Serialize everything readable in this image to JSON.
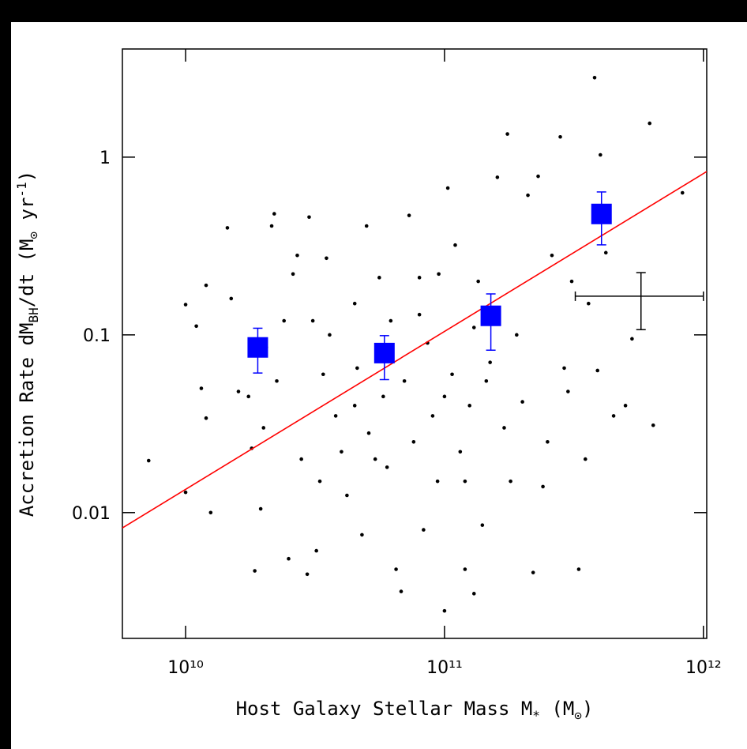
{
  "chart_data": {
    "type": "scatter",
    "xlabel": [
      "Host Galaxy Stellar Mass M",
      "*",
      " (M",
      "⊙",
      ")"
    ],
    "ylabel": [
      "Accretion Rate dM",
      "BH",
      "/dt (M",
      "⊙",
      " yr",
      "-1",
      ")"
    ],
    "log_x": true,
    "log_y": true,
    "xlim": [
      5700000000,
      1030000000000
    ],
    "ylim": [
      0.00196,
      4.06
    ],
    "xticks": [
      {
        "value": 10000000000,
        "label": "10¹⁰"
      },
      {
        "value": 100000000000,
        "label": "10¹¹"
      },
      {
        "value": 1000000000000,
        "label": "10¹²"
      }
    ],
    "yticks": [
      0.01,
      0.1,
      1
    ],
    "points": {
      "color": "#000000",
      "x": [
        7200000000.0,
        10000000000.0,
        10000000000.0,
        11000000000.0,
        11500000000.0,
        12000000000.0,
        12000000000.0,
        12500000000.0,
        14500000000.0,
        15000000000.0,
        16000000000.0,
        17500000000.0,
        18000000000.0,
        18500000000.0,
        19500000000.0,
        20000000000.0,
        20500000000.0,
        21500000000.0,
        22000000000.0,
        22500000000.0,
        24000000000.0,
        25000000000.0,
        26000000000.0,
        27000000000.0,
        28000000000.0,
        29500000000.0,
        30000000000.0,
        31000000000.0,
        32000000000.0,
        33000000000.0,
        35000000000.0,
        36000000000.0,
        38000000000.0,
        40000000000.0,
        42000000000.0,
        45000000000.0,
        46000000000.0,
        48000000000.0,
        50000000000.0,
        51000000000.0,
        54000000000.0,
        56000000000.0,
        58000000000.0,
        62000000000.0,
        65000000000.0,
        68000000000.0,
        70000000000.0,
        73000000000.0,
        76000000000.0,
        80000000000.0,
        83000000000.0,
        86000000000.0,
        90000000000.0,
        94000000000.0,
        100000000000.0,
        103000000000.0,
        107000000000.0,
        110000000000.0,
        115000000000.0,
        120000000000.0,
        125000000000.0,
        130000000000.0,
        135000000000.0,
        140000000000.0,
        145000000000.0,
        160000000000.0,
        170000000000.0,
        175000000000.0,
        180000000000.0,
        190000000000.0,
        200000000000.0,
        210000000000.0,
        220000000000.0,
        230000000000.0,
        240000000000.0,
        260000000000.0,
        280000000000.0,
        290000000000.0,
        300000000000.0,
        310000000000.0,
        330000000000.0,
        350000000000.0,
        380000000000.0,
        400000000000.0,
        420000000000.0,
        450000000000.0,
        500000000000.0,
        530000000000.0,
        620000000000.0,
        640000000000.0,
        830000000000.0,
        390000000000.0,
        360000000000.0,
        130000000000.0,
        95000000000.0,
        45000000000.0,
        60000000000.0,
        150000000000.0,
        250000000000.0,
        80000000000.0,
        120000000000.0,
        34000000000.0,
        100000000000.0
      ],
      "y": [
        0.0196,
        0.148,
        0.013,
        0.112,
        0.05,
        0.19,
        0.034,
        0.01,
        0.4,
        0.16,
        0.048,
        0.045,
        0.023,
        0.0047,
        0.0105,
        0.03,
        0.085,
        0.41,
        0.48,
        0.055,
        0.12,
        0.0055,
        0.22,
        0.28,
        0.02,
        0.0045,
        0.46,
        0.12,
        0.0061,
        0.015,
        0.27,
        0.1,
        0.035,
        0.022,
        0.0125,
        0.15,
        0.065,
        0.0075,
        0.41,
        0.028,
        0.02,
        0.21,
        0.045,
        0.12,
        0.0048,
        0.0036,
        0.055,
        0.47,
        0.025,
        0.21,
        0.008,
        0.09,
        0.035,
        0.015,
        0.0028,
        0.67,
        0.06,
        0.32,
        0.022,
        0.0048,
        0.04,
        0.0035,
        0.2,
        0.0085,
        0.055,
        0.77,
        0.03,
        1.35,
        0.015,
        0.1,
        0.042,
        0.61,
        0.0046,
        0.78,
        0.014,
        0.28,
        1.3,
        0.065,
        0.048,
        0.2,
        0.0048,
        0.02,
        2.8,
        1.03,
        0.29,
        0.035,
        0.04,
        0.095,
        1.55,
        0.031,
        0.63,
        0.063,
        0.15,
        0.11,
        0.22,
        0.04,
        0.018,
        0.07,
        0.025,
        0.13,
        0.015,
        0.06,
        0.045
      ]
    },
    "means": {
      "color": "#0000ff",
      "x": [
        19000000000,
        58600000000,
        151000000000,
        404000000000
      ],
      "y": [
        0.085,
        0.079,
        0.128,
        0.479
      ],
      "ylow": [
        0.061,
        0.056,
        0.082,
        0.321
      ],
      "yhigh": [
        0.109,
        0.099,
        0.17,
        0.637
      ]
    },
    "fit": {
      "color": "#ff0000",
      "x": [
        5700000000,
        1030000000000
      ],
      "y": [
        0.0082,
        0.83
      ]
    },
    "typical_error": {
      "color": "#000000",
      "x": 574000000000,
      "y": 0.165,
      "xlow": 320000000000,
      "xhigh": 1000000000000,
      "ylow": 0.107,
      "yhigh": 0.224
    }
  }
}
